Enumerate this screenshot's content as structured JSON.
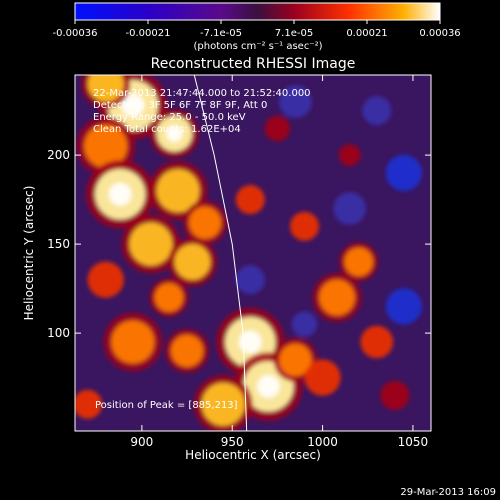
{
  "chart_data": {
    "type": "heatmap",
    "title": "Reconstructed RHESSI Image",
    "xlabel": "Heliocentric X (arcsec)",
    "ylabel": "Heliocentric Y (arcsec)",
    "xlim": [
      863,
      1060
    ],
    "ylim": [
      45,
      245
    ],
    "x_ticks": [
      900,
      950,
      1000,
      1050
    ],
    "y_ticks": [
      100,
      150,
      200
    ],
    "colorbar": {
      "ticks": [
        "-0.00036",
        "-0.00021",
        "-7.1e-05",
        "7.1e-05",
        "0.00021",
        "0.00036"
      ],
      "unit_label": "(photons cm⁻² s⁻¹ asec⁻²)",
      "min": -0.00036,
      "max": 0.00036
    },
    "annotations": {
      "time_range": "22-Mar-2013 21:47:44.000 to 21:52:40.000",
      "detectors": "Detectors: 3F 5F 6F 7F 8F 9F, Att 0",
      "energy": "Energy Range: 25.0 - 50.0 keV",
      "counts": "Clean   Total counts: 1.62E+04",
      "peak": "Position of Peak = [885,213]"
    },
    "limb_curve": [
      [
        929,
        245
      ],
      [
        940,
        200
      ],
      [
        950,
        150
      ],
      [
        956,
        100
      ],
      [
        958,
        45
      ]
    ],
    "blobs": [
      {
        "x": 895,
        "y": 228,
        "r": 14,
        "v": 1.0
      },
      {
        "x": 918,
        "y": 212,
        "r": 10,
        "v": 0.9
      },
      {
        "x": 880,
        "y": 205,
        "r": 12,
        "v": 0.7
      },
      {
        "x": 888,
        "y": 178,
        "r": 14,
        "v": 0.95
      },
      {
        "x": 920,
        "y": 180,
        "r": 12,
        "v": 0.8
      },
      {
        "x": 935,
        "y": 162,
        "r": 9,
        "v": 0.75
      },
      {
        "x": 905,
        "y": 150,
        "r": 12,
        "v": 0.8
      },
      {
        "x": 928,
        "y": 140,
        "r": 10,
        "v": 0.85
      },
      {
        "x": 880,
        "y": 130,
        "r": 10,
        "v": 0.6
      },
      {
        "x": 915,
        "y": 120,
        "r": 8,
        "v": 0.7
      },
      {
        "x": 895,
        "y": 95,
        "r": 12,
        "v": 0.75
      },
      {
        "x": 925,
        "y": 90,
        "r": 9,
        "v": 0.65
      },
      {
        "x": 960,
        "y": 95,
        "r": 14,
        "v": 0.9
      },
      {
        "x": 970,
        "y": 70,
        "r": 14,
        "v": 0.95
      },
      {
        "x": 945,
        "y": 60,
        "r": 12,
        "v": 0.8
      },
      {
        "x": 985,
        "y": 85,
        "r": 9,
        "v": 0.7
      },
      {
        "x": 1008,
        "y": 120,
        "r": 10,
        "v": 0.7
      },
      {
        "x": 1020,
        "y": 140,
        "r": 8,
        "v": 0.65
      },
      {
        "x": 1000,
        "y": 75,
        "r": 10,
        "v": 0.6
      },
      {
        "x": 1030,
        "y": 95,
        "r": 9,
        "v": 0.55
      },
      {
        "x": 960,
        "y": 175,
        "r": 8,
        "v": 0.55
      },
      {
        "x": 975,
        "y": 215,
        "r": 7,
        "v": 0.45
      },
      {
        "x": 990,
        "y": 160,
        "r": 8,
        "v": 0.5
      },
      {
        "x": 1040,
        "y": 65,
        "r": 8,
        "v": 0.45
      },
      {
        "x": 870,
        "y": 60,
        "r": 8,
        "v": 0.55
      },
      {
        "x": 880,
        "y": 240,
        "r": 10,
        "v": 0.8
      },
      {
        "x": 1015,
        "y": 200,
        "r": 6,
        "v": 0.35
      },
      {
        "x": 1045,
        "y": 190,
        "r": -10,
        "v": -0.6
      },
      {
        "x": 1015,
        "y": 170,
        "r": -9,
        "v": -0.5
      },
      {
        "x": 1045,
        "y": 115,
        "r": -10,
        "v": -0.6
      },
      {
        "x": 985,
        "y": 230,
        "r": -9,
        "v": -0.5
      },
      {
        "x": 960,
        "y": 130,
        "r": -8,
        "v": -0.45
      },
      {
        "x": 990,
        "y": 105,
        "r": -7,
        "v": -0.4
      },
      {
        "x": 1030,
        "y": 225,
        "r": -8,
        "v": -0.5
      }
    ]
  },
  "footer": {
    "date": "29-Mar-2013 16:09"
  }
}
